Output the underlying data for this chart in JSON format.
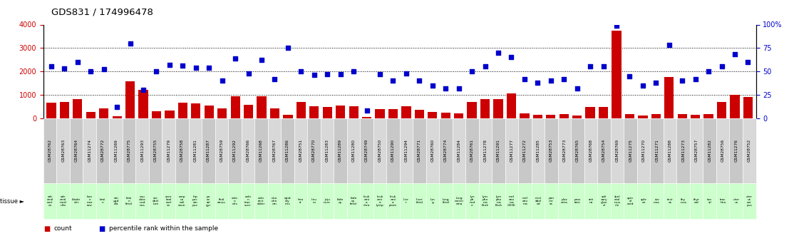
{
  "title": "GDS831 / 174996478",
  "samples": [
    "GSM28762",
    "GSM28763",
    "GSM28764",
    "GSM11274",
    "GSM28772",
    "GSM11269",
    "GSM28775",
    "GSM11293",
    "GSM28755",
    "GSM11279",
    "GSM28758",
    "GSM11281",
    "GSM11287",
    "GSM28759",
    "GSM11292",
    "GSM28766",
    "GSM11268",
    "GSM28767",
    "GSM11286",
    "GSM28751",
    "GSM28770",
    "GSM11283",
    "GSM11289",
    "GSM11280",
    "GSM28749",
    "GSM28750",
    "GSM11290",
    "GSM11294",
    "GSM28771",
    "GSM28760",
    "GSM28774",
    "GSM11284",
    "GSM28761",
    "GSM11278",
    "GSM11291",
    "GSM11277",
    "GSM11272",
    "GSM11285",
    "GSM28753",
    "GSM28773",
    "GSM28765",
    "GSM28768",
    "GSM28754",
    "GSM28769",
    "GSM11275",
    "GSM11270",
    "GSM11271",
    "GSM11288",
    "GSM11273",
    "GSM28757",
    "GSM11282",
    "GSM28756",
    "GSM11276",
    "GSM28752"
  ],
  "tissues": [
    "adr\nenal\ncort\nex",
    "adr\nenal\nmed\nulla",
    "blade\nder",
    "bon\ne\nmar\nrow",
    "brai\nn",
    "am\nygd\nala",
    "brai\nn\nfetal",
    "cau\ndate\nnud\neus",
    "cer\nebel\nlum",
    "cere\nbral\ncort\nex",
    "corp\nus\ncali\nosun",
    "hip\npoc\nam\npus",
    "po\nce\nral\ngyr",
    "thal\namus",
    "colo\nn\ndes",
    "colo\nn\ntran\nsver",
    "colo\nrect\nalder",
    "duo\nden\num",
    "epid\nidy\nmis",
    "hea\nrt",
    "ileu\nm",
    "jeju\nnum",
    "kidn\ney",
    "kidn\ney\nfetal",
    "leuk\nemi\na\nchro",
    "leuk\nemi\na\nlymp",
    "leuk\nemi\na\nprom",
    "live\nr",
    "liver\nfetal",
    "lun\ng",
    "lung\nfetal",
    "lung\ncarcin\noma",
    "lyn\nph\nnod\ne",
    "lym\npho\nma\nBurk",
    "lym\npho\nma\nBurk",
    "mel\nano\nma\nG336",
    "mel\nano\nma",
    "misl\nabel\ned",
    "pan\ncre\nas",
    "plac\nenta",
    "pros\ntate",
    "reti\nna",
    "sali\nvary\nglan\nd",
    "skel\netal\nmus\ncle",
    "spin\nal\ncord",
    "sple\nen",
    "sto\nmac",
    "test\nes",
    "thy\nmus",
    "thyr\noid",
    "ton\nsil",
    "trac\nhea",
    "uter\nus",
    "uter\nus\ncor\npus"
  ],
  "counts": [
    650,
    680,
    810,
    270,
    420,
    75,
    1570,
    1220,
    280,
    310,
    660,
    640,
    540,
    420,
    920,
    560,
    920,
    430,
    130,
    700,
    500,
    470,
    540,
    520,
    45,
    390,
    380,
    520,
    350,
    250,
    230,
    200,
    700,
    800,
    800,
    1050,
    200,
    150,
    150,
    160,
    110,
    480,
    480,
    3750,
    175,
    100,
    170,
    1750,
    160,
    155,
    165,
    700,
    1000,
    900
  ],
  "percentiles": [
    55,
    53,
    60,
    50,
    52,
    12,
    80,
    30,
    50,
    57,
    56,
    54,
    54,
    40,
    64,
    48,
    62,
    42,
    75,
    50,
    46,
    47,
    47,
    50,
    8,
    47,
    40,
    48,
    40,
    35,
    32,
    32,
    50,
    55,
    70,
    65,
    42,
    38,
    40,
    42,
    32,
    55,
    55,
    99,
    45,
    35,
    38,
    78,
    40,
    42,
    50,
    55,
    68,
    60
  ],
  "bar_color": "#cc0000",
  "dot_color": "#0000cc",
  "tissue_color": "#ccffcc",
  "sample_color_a": "#c8c8c8",
  "sample_color_b": "#d8d8d8",
  "ylim_left": [
    0,
    4000
  ],
  "ylim_right": [
    0,
    100
  ],
  "yticks_left": [
    0,
    1000,
    2000,
    3000,
    4000
  ],
  "yticks_right": [
    0,
    25,
    50,
    75,
    100
  ],
  "ytick_right_labels": [
    "0",
    "25",
    "50",
    "75",
    "100%"
  ],
  "bg_color": "#ffffff",
  "legend_labels": [
    "count",
    "percentile rank within the sample"
  ]
}
